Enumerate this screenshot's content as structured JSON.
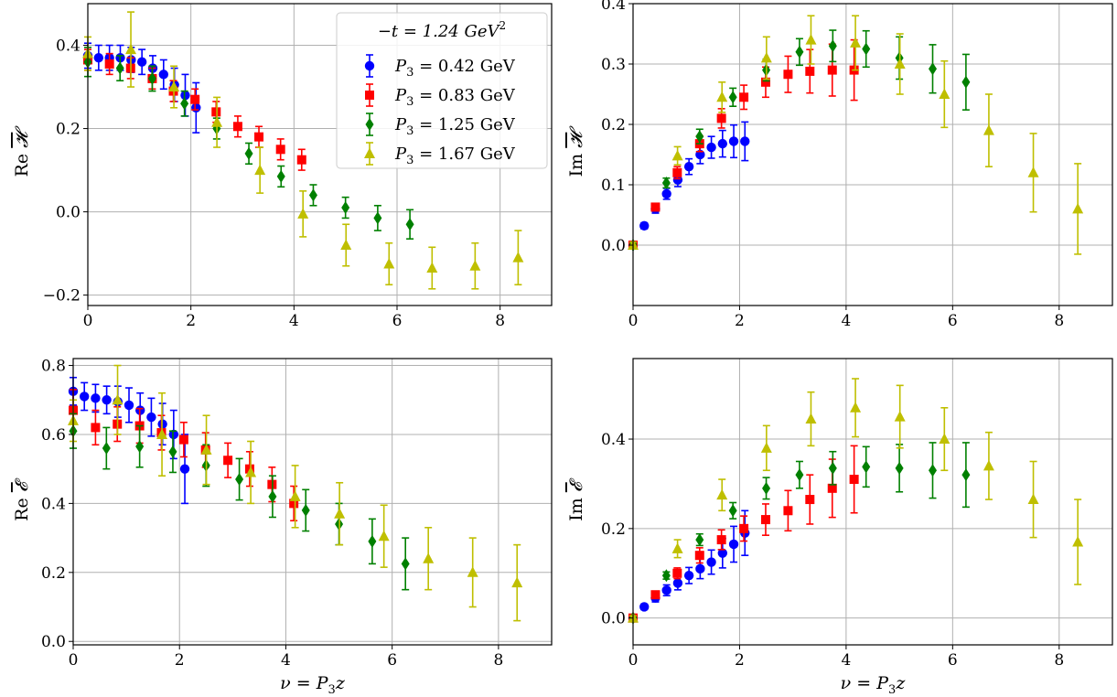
{
  "chart_data": [
    {
      "type": "scatter",
      "title": "",
      "xlabel": "",
      "ylabel": "Re H̄",
      "ylabel_parts": {
        "prefix": "Re",
        "symbol": "𝓗"
      },
      "xlim": [
        0,
        9.0
      ],
      "ylim": [
        -0.225,
        0.5
      ],
      "xticks": [
        0,
        2,
        4,
        6,
        8
      ],
      "xtick_labels": [
        "0",
        "2",
        "4",
        "6",
        "8"
      ],
      "yticks": [
        -0.2,
        0.0,
        0.2,
        0.4
      ],
      "ytick_labels": [
        "−0.2",
        "0.0",
        "0.2",
        "0.4"
      ],
      "grid": true,
      "legend": {
        "placement": "top-right",
        "title": "−t = 1.24 GeV²",
        "title_parts": {
          "lhs": "−t = 1.24 GeV",
          "sup": "2"
        },
        "entries": [
          {
            "var": "P",
            "sub": "3",
            "text": " = 0.42 GeV"
          },
          {
            "var": "P",
            "sub": "3",
            "text": " = 0.83 GeV"
          },
          {
            "var": "P",
            "sub": "3",
            "text": " = 1.25 GeV"
          },
          {
            "var": "P",
            "sub": "3",
            "text": " = 1.67 GeV"
          }
        ]
      },
      "series": [
        {
          "name": "P3 = 0.42 GeV",
          "marker": "circle",
          "color": "#0000ff",
          "x": [
            0.0,
            0.21,
            0.42,
            0.63,
            0.84,
            1.05,
            1.26,
            1.47,
            1.68,
            1.89,
            2.1
          ],
          "y": [
            0.375,
            0.37,
            0.37,
            0.37,
            0.365,
            0.36,
            0.345,
            0.33,
            0.305,
            0.28,
            0.25
          ],
          "err": [
            0.03,
            0.03,
            0.03,
            0.03,
            0.03,
            0.03,
            0.03,
            0.035,
            0.04,
            0.05,
            0.06
          ]
        },
        {
          "name": "P3 = 0.83 GeV",
          "marker": "square",
          "color": "#ff0000",
          "x": [
            0.0,
            0.42,
            0.83,
            1.25,
            1.66,
            2.08,
            2.49,
            2.91,
            3.32,
            3.74,
            4.15
          ],
          "y": [
            0.365,
            0.355,
            0.345,
            0.32,
            0.29,
            0.27,
            0.24,
            0.205,
            0.18,
            0.15,
            0.125
          ],
          "err": [
            0.025,
            0.025,
            0.025,
            0.025,
            0.025,
            0.025,
            0.025,
            0.025,
            0.025,
            0.025,
            0.025
          ]
        },
        {
          "name": "P3 = 1.25 GeV",
          "marker": "diamond",
          "color": "#008000",
          "x": [
            0.0,
            0.625,
            1.25,
            1.875,
            2.5,
            3.125,
            3.75,
            4.375,
            5.0,
            5.625,
            6.25
          ],
          "y": [
            0.36,
            0.345,
            0.32,
            0.26,
            0.2,
            0.14,
            0.085,
            0.04,
            0.01,
            -0.015,
            -0.03
          ],
          "err": [
            0.035,
            0.03,
            0.03,
            0.03,
            0.025,
            0.025,
            0.025,
            0.025,
            0.025,
            0.03,
            0.035
          ]
        },
        {
          "name": "P3 = 1.67 GeV",
          "marker": "triangle",
          "color": "#bfbf00",
          "x": [
            0.0,
            0.835,
            1.67,
            2.505,
            3.34,
            4.175,
            5.01,
            5.845,
            6.68,
            7.515,
            8.35
          ],
          "y": [
            0.38,
            0.39,
            0.3,
            0.215,
            0.1,
            -0.005,
            -0.08,
            -0.125,
            -0.135,
            -0.13,
            -0.11
          ],
          "err": [
            0.04,
            0.09,
            0.05,
            0.06,
            0.055,
            0.055,
            0.05,
            0.05,
            0.05,
            0.055,
            0.065
          ]
        }
      ]
    },
    {
      "type": "scatter",
      "title": "",
      "xlabel": "",
      "ylabel": "Im H̄",
      "ylabel_parts": {
        "prefix": "Im",
        "symbol": "𝓗"
      },
      "xlim": [
        0,
        9.0
      ],
      "ylim": [
        -0.1,
        0.4
      ],
      "xticks": [
        0,
        2,
        4,
        6,
        8
      ],
      "xtick_labels": [
        "0",
        "2",
        "4",
        "6",
        "8"
      ],
      "yticks": [
        0.0,
        0.1,
        0.2,
        0.3,
        0.4
      ],
      "ytick_labels": [
        "0.0",
        "0.1",
        "0.2",
        "0.3",
        "0.4"
      ],
      "grid": true,
      "series": [
        {
          "name": "P3 = 0.42 GeV",
          "marker": "circle",
          "color": "#0000ff",
          "x": [
            0.0,
            0.21,
            0.42,
            0.63,
            0.84,
            1.05,
            1.26,
            1.47,
            1.68,
            1.89,
            2.1
          ],
          "y": [
            0.0,
            0.032,
            0.06,
            0.085,
            0.108,
            0.13,
            0.15,
            0.162,
            0.168,
            0.172,
            0.172
          ],
          "err": [
            0.003,
            0.005,
            0.007,
            0.009,
            0.011,
            0.013,
            0.015,
            0.018,
            0.022,
            0.027,
            0.032
          ]
        },
        {
          "name": "P3 = 0.83 GeV",
          "marker": "square",
          "color": "#ff0000",
          "x": [
            0.0,
            0.42,
            0.83,
            1.25,
            1.66,
            2.08,
            2.49,
            2.91,
            3.32,
            3.74,
            4.15
          ],
          "y": [
            0.0,
            0.063,
            0.12,
            0.168,
            0.21,
            0.245,
            0.27,
            0.283,
            0.288,
            0.29,
            0.29
          ],
          "err": [
            0.003,
            0.006,
            0.01,
            0.013,
            0.016,
            0.02,
            0.025,
            0.03,
            0.036,
            0.043,
            0.05
          ]
        },
        {
          "name": "P3 = 1.25 GeV",
          "marker": "diamond",
          "color": "#008000",
          "x": [
            0.0,
            0.625,
            1.25,
            1.875,
            2.5,
            3.125,
            3.75,
            4.375,
            5.0,
            5.625,
            6.25
          ],
          "y": [
            0.0,
            0.103,
            0.18,
            0.245,
            0.29,
            0.32,
            0.33,
            0.325,
            0.31,
            0.292,
            0.27
          ],
          "err": [
            0.004,
            0.008,
            0.012,
            0.015,
            0.018,
            0.022,
            0.026,
            0.03,
            0.035,
            0.04,
            0.046
          ]
        },
        {
          "name": "P3 = 1.67 GeV",
          "marker": "triangle",
          "color": "#bfbf00",
          "x": [
            0.0,
            0.835,
            1.67,
            2.505,
            3.34,
            4.175,
            5.01,
            5.845,
            6.68,
            7.515,
            8.35
          ],
          "y": [
            0.0,
            0.148,
            0.245,
            0.31,
            0.34,
            0.335,
            0.3,
            0.25,
            0.19,
            0.12,
            0.06
          ],
          "err": [
            0.005,
            0.015,
            0.025,
            0.035,
            0.04,
            0.045,
            0.05,
            0.055,
            0.06,
            0.065,
            0.075
          ]
        }
      ]
    },
    {
      "type": "scatter",
      "title": "",
      "xlabel": "ν = P3z",
      "xlabel_parts": {
        "pre": "ν = ",
        "var": "P",
        "sub": "3",
        "post": "z"
      },
      "ylabel": "Re Ē",
      "ylabel_parts": {
        "prefix": "Re",
        "symbol": "𝓔"
      },
      "xlim": [
        0,
        9.0
      ],
      "ylim": [
        -0.01,
        0.82
      ],
      "xticks": [
        0,
        2,
        4,
        6,
        8
      ],
      "xtick_labels": [
        "0",
        "2",
        "4",
        "6",
        "8"
      ],
      "yticks": [
        0.0,
        0.2,
        0.4,
        0.6,
        0.8
      ],
      "ytick_labels": [
        "0.0",
        "0.2",
        "0.4",
        "0.6",
        "0.8"
      ],
      "grid": true,
      "series": [
        {
          "name": "P3 = 0.42 GeV",
          "marker": "circle",
          "color": "#0000ff",
          "x": [
            0.0,
            0.21,
            0.42,
            0.63,
            0.84,
            1.05,
            1.26,
            1.47,
            1.68,
            1.89,
            2.1
          ],
          "y": [
            0.725,
            0.71,
            0.705,
            0.7,
            0.695,
            0.685,
            0.67,
            0.65,
            0.63,
            0.6,
            0.5
          ],
          "err": [
            0.04,
            0.04,
            0.04,
            0.04,
            0.045,
            0.05,
            0.05,
            0.055,
            0.06,
            0.07,
            0.1
          ]
        },
        {
          "name": "P3 = 0.83 GeV",
          "marker": "square",
          "color": "#ff0000",
          "x": [
            0.0,
            0.42,
            0.83,
            1.25,
            1.66,
            2.08,
            2.49,
            2.91,
            3.32,
            3.74,
            4.15
          ],
          "y": [
            0.67,
            0.62,
            0.63,
            0.625,
            0.605,
            0.585,
            0.555,
            0.525,
            0.5,
            0.455,
            0.4
          ],
          "err": [
            0.06,
            0.05,
            0.05,
            0.05,
            0.05,
            0.05,
            0.05,
            0.05,
            0.05,
            0.05,
            0.05
          ]
        },
        {
          "name": "P3 = 1.25 GeV",
          "marker": "diamond",
          "color": "#008000",
          "x": [
            0.0,
            0.625,
            1.25,
            1.875,
            2.5,
            3.125,
            3.75,
            4.375,
            5.0,
            5.625,
            6.25
          ],
          "y": [
            0.61,
            0.56,
            0.565,
            0.55,
            0.51,
            0.47,
            0.42,
            0.38,
            0.34,
            0.29,
            0.225
          ],
          "err": [
            0.05,
            0.06,
            0.06,
            0.06,
            0.06,
            0.06,
            0.06,
            0.06,
            0.06,
            0.065,
            0.075
          ]
        },
        {
          "name": "P3 = 1.67 GeV",
          "marker": "triangle",
          "color": "#bfbf00",
          "x": [
            0.0,
            0.835,
            1.67,
            2.505,
            3.34,
            4.175,
            5.01,
            5.845,
            6.68,
            7.515,
            8.35
          ],
          "y": [
            0.64,
            0.7,
            0.6,
            0.555,
            0.49,
            0.42,
            0.37,
            0.305,
            0.24,
            0.2,
            0.17
          ],
          "err": [
            0.06,
            0.1,
            0.12,
            0.1,
            0.09,
            0.09,
            0.09,
            0.09,
            0.09,
            0.1,
            0.11
          ]
        }
      ]
    },
    {
      "type": "scatter",
      "title": "",
      "xlabel": "ν = P3z",
      "xlabel_parts": {
        "pre": "ν = ",
        "var": "P",
        "sub": "3",
        "post": "z"
      },
      "ylabel": "Im Ē",
      "ylabel_parts": {
        "prefix": "Im",
        "symbol": "𝓔"
      },
      "xlim": [
        0,
        9.0
      ],
      "ylim": [
        -0.06,
        0.58
      ],
      "xticks": [
        0,
        2,
        4,
        6,
        8
      ],
      "xtick_labels": [
        "0",
        "2",
        "4",
        "6",
        "8"
      ],
      "yticks": [
        0.0,
        0.2,
        0.4
      ],
      "ytick_labels": [
        "0.0",
        "0.2",
        "0.4"
      ],
      "grid": true,
      "series": [
        {
          "name": "P3 = 0.42 GeV",
          "marker": "circle",
          "color": "#0000ff",
          "x": [
            0.0,
            0.21,
            0.42,
            0.63,
            0.84,
            1.05,
            1.26,
            1.47,
            1.68,
            1.89,
            2.1
          ],
          "y": [
            0.0,
            0.025,
            0.045,
            0.062,
            0.078,
            0.095,
            0.11,
            0.125,
            0.145,
            0.165,
            0.19
          ],
          "err": [
            0.003,
            0.006,
            0.009,
            0.012,
            0.015,
            0.018,
            0.022,
            0.027,
            0.033,
            0.04,
            0.05
          ]
        },
        {
          "name": "P3 = 0.83 GeV",
          "marker": "square",
          "color": "#ff0000",
          "x": [
            0.0,
            0.42,
            0.83,
            1.25,
            1.66,
            2.08,
            2.49,
            2.91,
            3.32,
            3.74,
            4.15
          ],
          "y": [
            0.0,
            0.052,
            0.1,
            0.14,
            0.175,
            0.2,
            0.22,
            0.24,
            0.265,
            0.29,
            0.31
          ],
          "err": [
            0.004,
            0.008,
            0.012,
            0.017,
            0.022,
            0.028,
            0.035,
            0.045,
            0.055,
            0.065,
            0.075
          ]
        },
        {
          "name": "P3 = 1.25 GeV",
          "marker": "diamond",
          "color": "#008000",
          "x": [
            0.0,
            0.625,
            1.25,
            1.875,
            2.5,
            3.125,
            3.75,
            4.375,
            5.0,
            5.625,
            6.25
          ],
          "y": [
            0.0,
            0.095,
            0.175,
            0.24,
            0.29,
            0.32,
            0.335,
            0.338,
            0.335,
            0.33,
            0.32
          ],
          "err": [
            0.004,
            0.008,
            0.013,
            0.018,
            0.024,
            0.03,
            0.037,
            0.045,
            0.053,
            0.062,
            0.072
          ]
        },
        {
          "name": "P3 = 1.67 GeV",
          "marker": "triangle",
          "color": "#bfbf00",
          "x": [
            0.0,
            0.835,
            1.67,
            2.505,
            3.34,
            4.175,
            5.01,
            5.845,
            6.68,
            7.515,
            8.35
          ],
          "y": [
            0.0,
            0.155,
            0.275,
            0.38,
            0.445,
            0.47,
            0.45,
            0.4,
            0.34,
            0.265,
            0.17
          ],
          "err": [
            0.005,
            0.02,
            0.035,
            0.05,
            0.06,
            0.065,
            0.07,
            0.07,
            0.075,
            0.085,
            0.095
          ]
        }
      ]
    }
  ]
}
